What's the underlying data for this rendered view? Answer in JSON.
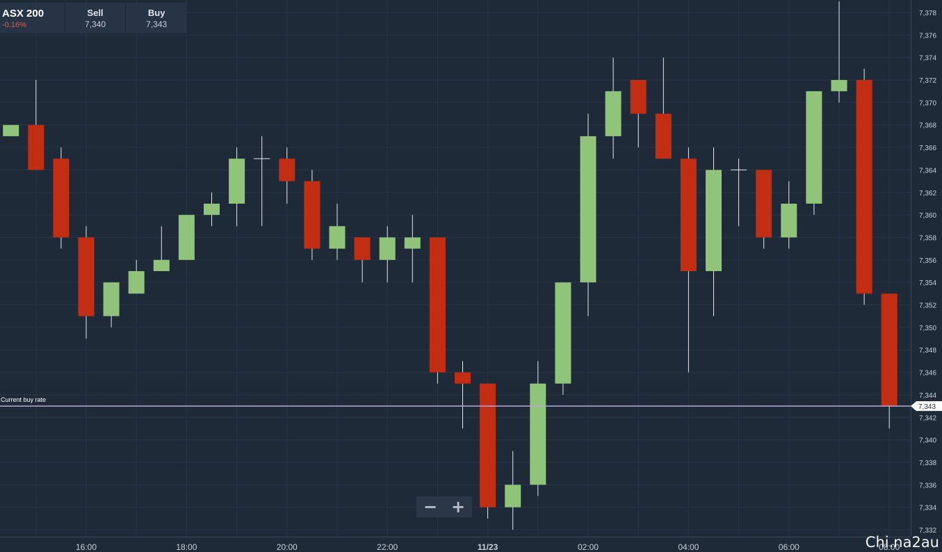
{
  "header": {
    "instrument": "ASX 200",
    "change": "-0.16%",
    "sell_label": "Sell",
    "sell_value": "7,340",
    "buy_label": "Buy",
    "buy_value": "7,343"
  },
  "zoom": {
    "out_label": "−",
    "in_label": "+"
  },
  "watermark": "Chi.na2au",
  "chart_data": {
    "type": "candlestick",
    "ylim": [
      7332,
      7378
    ],
    "y_ticks": [
      7332,
      7334,
      7336,
      7338,
      7340,
      7342,
      7344,
      7346,
      7348,
      7350,
      7352,
      7354,
      7356,
      7358,
      7360,
      7362,
      7364,
      7366,
      7368,
      7370,
      7372,
      7374,
      7376,
      7378
    ],
    "y_tick_labels": [
      "7,332",
      "7,334",
      "7,336",
      "7,338",
      "7,340",
      "7,342",
      "7,344",
      "7,346",
      "7,348",
      "7,350",
      "7,352",
      "7,354",
      "7,356",
      "7,358",
      "7,360",
      "7,362",
      "7,364",
      "7,366",
      "7,368",
      "7,370",
      "7,372",
      "7,374",
      "7,376",
      "7,378"
    ],
    "x_tick_labels": [
      "16:00",
      "18:00",
      "20:00",
      "22:00",
      "11/23",
      "02:00",
      "04:00",
      "06:00",
      "08:00"
    ],
    "x_tick_hours": [
      16,
      18,
      20,
      22,
      24,
      26,
      28,
      30,
      32
    ],
    "grid": true,
    "current_rate": {
      "label": "Current buy rate",
      "value": 7343,
      "value_label": "7,343"
    },
    "colors": {
      "up": "#8fc47a",
      "down": "#c22e14",
      "background": "#1f2a38",
      "grid": "#2a3646",
      "rate_line": "#b9a9dc",
      "text": "#c9d0da"
    },
    "candles": [
      {
        "t": 14.5,
        "o": 7367,
        "h": 7368,
        "l": 7367,
        "c": 7368
      },
      {
        "t": 15.0,
        "o": 7368,
        "h": 7372,
        "l": 7364,
        "c": 7364
      },
      {
        "t": 15.5,
        "o": 7365,
        "h": 7366,
        "l": 7357,
        "c": 7358
      },
      {
        "t": 16.0,
        "o": 7358,
        "h": 7359,
        "l": 7349,
        "c": 7351
      },
      {
        "t": 16.5,
        "o": 7351,
        "h": 7354,
        "l": 7350,
        "c": 7354
      },
      {
        "t": 17.0,
        "o": 7353,
        "h": 7356,
        "l": 7353,
        "c": 7355
      },
      {
        "t": 17.5,
        "o": 7355,
        "h": 7359,
        "l": 7355,
        "c": 7356
      },
      {
        "t": 18.0,
        "o": 7356,
        "h": 7360,
        "l": 7356,
        "c": 7360
      },
      {
        "t": 18.5,
        "o": 7360,
        "h": 7362,
        "l": 7359,
        "c": 7361
      },
      {
        "t": 19.0,
        "o": 7361,
        "h": 7366,
        "l": 7359,
        "c": 7365
      },
      {
        "t": 19.5,
        "o": 7365,
        "h": 7367,
        "l": 7359,
        "c": 7365
      },
      {
        "t": 20.0,
        "o": 7365,
        "h": 7366,
        "l": 7361,
        "c": 7363
      },
      {
        "t": 20.5,
        "o": 7363,
        "h": 7364,
        "l": 7356,
        "c": 7357
      },
      {
        "t": 21.0,
        "o": 7357,
        "h": 7361,
        "l": 7356,
        "c": 7359
      },
      {
        "t": 21.5,
        "o": 7358,
        "h": 7358,
        "l": 7354,
        "c": 7356
      },
      {
        "t": 22.0,
        "o": 7356,
        "h": 7359,
        "l": 7354,
        "c": 7358
      },
      {
        "t": 22.5,
        "o": 7357,
        "h": 7360,
        "l": 7354,
        "c": 7358
      },
      {
        "t": 23.0,
        "o": 7358,
        "h": 7358,
        "l": 7345,
        "c": 7346
      },
      {
        "t": 23.5,
        "o": 7346,
        "h": 7347,
        "l": 7341,
        "c": 7345
      },
      {
        "t": 24.0,
        "o": 7345,
        "h": 7345,
        "l": 7333,
        "c": 7334
      },
      {
        "t": 24.5,
        "o": 7334,
        "h": 7339,
        "l": 7332,
        "c": 7336
      },
      {
        "t": 25.0,
        "o": 7336,
        "h": 7347,
        "l": 7335,
        "c": 7345
      },
      {
        "t": 25.5,
        "o": 7345,
        "h": 7354,
        "l": 7344,
        "c": 7354
      },
      {
        "t": 26.0,
        "o": 7354,
        "h": 7369,
        "l": 7351,
        "c": 7367
      },
      {
        "t": 26.5,
        "o": 7367,
        "h": 7374,
        "l": 7365,
        "c": 7371
      },
      {
        "t": 27.0,
        "o": 7372,
        "h": 7372,
        "l": 7366,
        "c": 7369
      },
      {
        "t": 27.5,
        "o": 7369,
        "h": 7374,
        "l": 7365,
        "c": 7365
      },
      {
        "t": 28.0,
        "o": 7365,
        "h": 7366,
        "l": 7346,
        "c": 7355
      },
      {
        "t": 28.5,
        "o": 7355,
        "h": 7366,
        "l": 7351,
        "c": 7364
      },
      {
        "t": 29.0,
        "o": 7364,
        "h": 7365,
        "l": 7359,
        "c": 7364
      },
      {
        "t": 29.5,
        "o": 7364,
        "h": 7364,
        "l": 7357,
        "c": 7358
      },
      {
        "t": 30.0,
        "o": 7358,
        "h": 7363,
        "l": 7357,
        "c": 7361
      },
      {
        "t": 30.5,
        "o": 7361,
        "h": 7371,
        "l": 7360,
        "c": 7371
      },
      {
        "t": 31.0,
        "o": 7371,
        "h": 7379,
        "l": 7370,
        "c": 7372
      },
      {
        "t": 31.5,
        "o": 7372,
        "h": 7373,
        "l": 7352,
        "c": 7353
      },
      {
        "t": 32.0,
        "o": 7353,
        "h": 7353,
        "l": 7341,
        "c": 7343
      }
    ]
  }
}
